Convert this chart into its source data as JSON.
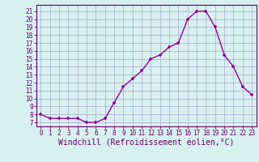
{
  "x": [
    0,
    1,
    2,
    3,
    4,
    5,
    6,
    7,
    8,
    9,
    10,
    11,
    12,
    13,
    14,
    15,
    16,
    17,
    18,
    19,
    20,
    21,
    22,
    23
  ],
  "y": [
    8,
    7.5,
    7.5,
    7.5,
    7.5,
    7,
    7,
    7.5,
    9.5,
    11.5,
    12.5,
    13.5,
    15,
    15.5,
    16.5,
    17,
    20,
    21,
    21,
    19,
    15.5,
    14,
    11.5,
    10.5
  ],
  "line_color": "#990099",
  "marker": "+",
  "background_color": "#d7f0f0",
  "grid_color": "#aaaacc",
  "xlabel": "Windchill (Refroidissement éolien,°C)",
  "xlim": [
    -0.5,
    23.5
  ],
  "ylim": [
    6.5,
    21.8
  ],
  "yticks": [
    7,
    8,
    9,
    10,
    11,
    12,
    13,
    14,
    15,
    16,
    17,
    18,
    19,
    20,
    21
  ],
  "xticks": [
    0,
    1,
    2,
    3,
    4,
    5,
    6,
    7,
    8,
    9,
    10,
    11,
    12,
    13,
    14,
    15,
    16,
    17,
    18,
    19,
    20,
    21,
    22,
    23
  ],
  "tick_label_color": "#660066",
  "tick_label_fontsize": 5.5,
  "xlabel_fontsize": 7.0,
  "xlabel_color": "#660066",
  "spine_color": "#660066",
  "markersize": 3,
  "linewidth": 1.0
}
